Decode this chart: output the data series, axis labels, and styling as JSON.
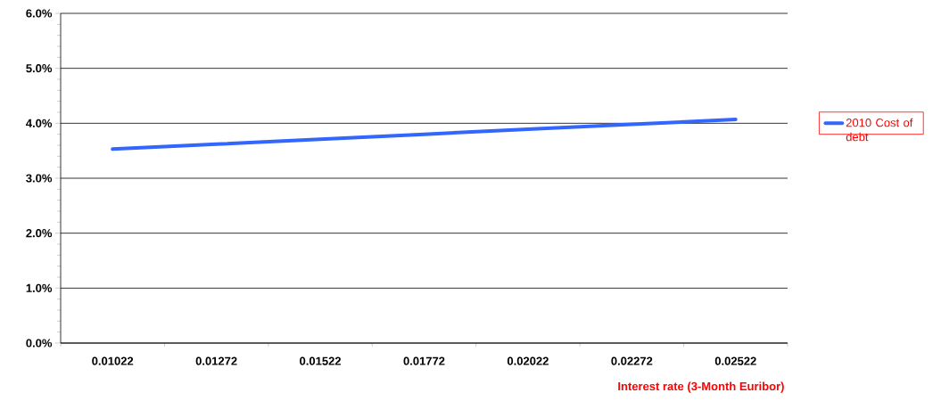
{
  "chart_data": {
    "type": "line",
    "xlabel": "Interest rate (3-Month Euribor)",
    "categories": [
      "0.01022",
      "0.01272",
      "0.01522",
      "0.01772",
      "0.02022",
      "0.02272",
      "0.02522"
    ],
    "series": [
      {
        "name": "2010 Cost of debt",
        "color": "#3366ff",
        "values": [
          3.53,
          3.62,
          3.71,
          3.8,
          3.89,
          3.98,
          4.07
        ]
      }
    ],
    "ylim": [
      0,
      6
    ],
    "yticks": [
      {
        "value": 0,
        "label": "0.0%"
      },
      {
        "value": 1,
        "label": "1.0%"
      },
      {
        "value": 2,
        "label": "2.0%"
      },
      {
        "value": 3,
        "label": "3.0%"
      },
      {
        "value": 4,
        "label": "4.0%"
      },
      {
        "value": 5,
        "label": "5.0%"
      },
      {
        "value": 6,
        "label": "6.0%"
      }
    ],
    "grid": "y",
    "legend": "right",
    "marker": "none",
    "line_style": "solid"
  }
}
